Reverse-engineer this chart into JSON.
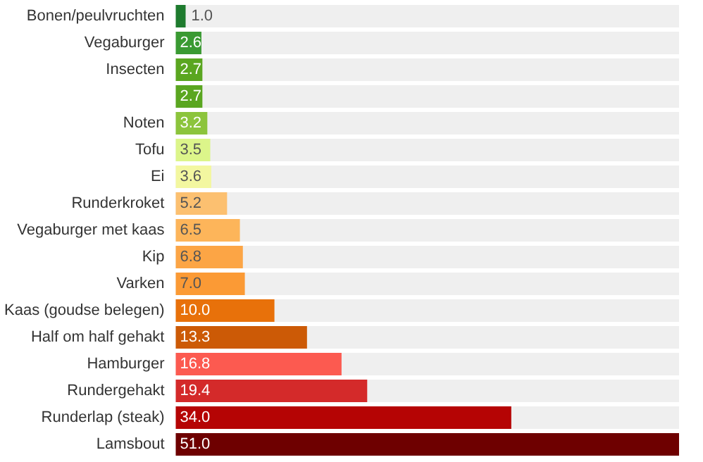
{
  "chart_data": {
    "type": "bar",
    "orientation": "horizontal",
    "categories": [
      "Bonen/peulvruchten",
      "Vegaburger",
      "Insecten",
      null,
      "Noten",
      "Tofu",
      "Ei",
      "Runderkroket",
      "Vegaburger met kaas",
      "Kip",
      "Varken",
      "Kaas (goudse belegen)",
      "Half om half gehakt",
      "Hamburger",
      "Rundergehakt",
      "Runderlap (steak)",
      "Lamsbout"
    ],
    "values": [
      1.0,
      2.6,
      2.7,
      2.7,
      3.2,
      3.5,
      3.6,
      5.2,
      6.5,
      6.8,
      7.0,
      10.0,
      13.3,
      16.8,
      19.4,
      34.0,
      51.0
    ],
    "value_labels": [
      "1.0",
      "2.6",
      "2.7",
      "2.7",
      "3.2",
      "3.5",
      "3.6",
      "5.2",
      "6.5",
      "6.8",
      "7.0",
      "10.0",
      "13.3",
      "16.8",
      "19.4",
      "34.0",
      "51.0"
    ],
    "colors": [
      "#1e7b2e",
      "#3a9a32",
      "#5aa620",
      "#5aa620",
      "#8cc43c",
      "#dcf58a",
      "#f3f7a0",
      "#fcc070",
      "#fdb55a",
      "#fca545",
      "#fb9a35",
      "#e8710a",
      "#cc5a06",
      "#fc5a50",
      "#d42a2a",
      "#b50404",
      "#6e0000"
    ]
  }
}
